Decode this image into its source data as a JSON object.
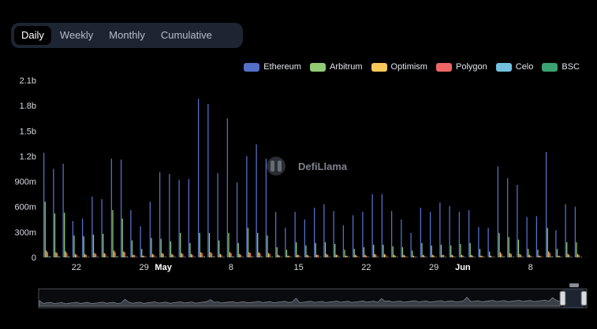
{
  "tabs": [
    {
      "label": "Daily",
      "active": true
    },
    {
      "label": "Weekly",
      "active": false
    },
    {
      "label": "Monthly",
      "active": false
    },
    {
      "label": "Cumulative",
      "active": false
    }
  ],
  "watermark": "DefiLlama",
  "chart_data": {
    "type": "bar",
    "stacked": false,
    "grid": false,
    "legend_position": "top-right",
    "ylim": [
      0,
      2100000000
    ],
    "yticks": [
      0,
      300000000,
      600000000,
      900000000,
      1200000000,
      1500000000,
      1800000000,
      2100000000
    ],
    "ytick_labels": [
      "0",
      "300m",
      "600m",
      "900m",
      "1.2b",
      "1.5b",
      "1.8b",
      "2.1b"
    ],
    "x_start": "2023-04-19",
    "categories": [
      "2023-04-19",
      "2023-04-20",
      "2023-04-21",
      "2023-04-22",
      "2023-04-23",
      "2023-04-24",
      "2023-04-25",
      "2023-04-26",
      "2023-04-27",
      "2023-04-28",
      "2023-04-29",
      "2023-04-30",
      "2023-05-01",
      "2023-05-02",
      "2023-05-03",
      "2023-05-04",
      "2023-05-05",
      "2023-05-06",
      "2023-05-07",
      "2023-05-08",
      "2023-05-09",
      "2023-05-10",
      "2023-05-11",
      "2023-05-12",
      "2023-05-13",
      "2023-05-14",
      "2023-05-15",
      "2023-05-16",
      "2023-05-17",
      "2023-05-18",
      "2023-05-19",
      "2023-05-20",
      "2023-05-21",
      "2023-05-22",
      "2023-05-23",
      "2023-05-24",
      "2023-05-25",
      "2023-05-26",
      "2023-05-27",
      "2023-05-28",
      "2023-05-29",
      "2023-05-30",
      "2023-05-31",
      "2023-06-01",
      "2023-06-02",
      "2023-06-03",
      "2023-06-04",
      "2023-06-05",
      "2023-06-06",
      "2023-06-07",
      "2023-06-08",
      "2023-06-09",
      "2023-06-10",
      "2023-06-11",
      "2023-06-12",
      "2023-06-13"
    ],
    "xtick_labels": [
      {
        "index": 3,
        "label": "22",
        "bold": false
      },
      {
        "index": 10,
        "label": "29",
        "bold": false
      },
      {
        "index": 12,
        "label": "May",
        "bold": true
      },
      {
        "index": 19,
        "label": "8",
        "bold": false
      },
      {
        "index": 26,
        "label": "15",
        "bold": false
      },
      {
        "index": 33,
        "label": "22",
        "bold": false
      },
      {
        "index": 40,
        "label": "29",
        "bold": false
      },
      {
        "index": 43,
        "label": "Jun",
        "bold": true
      },
      {
        "index": 50,
        "label": "8",
        "bold": false
      }
    ],
    "series": [
      {
        "name": "Ethereum",
        "color": "#5470c6",
        "values": [
          1240000000,
          1050000000,
          1110000000,
          430000000,
          460000000,
          720000000,
          690000000,
          1170000000,
          1160000000,
          560000000,
          370000000,
          660000000,
          1010000000,
          990000000,
          920000000,
          930000000,
          1880000000,
          1820000000,
          1000000000,
          1650000000,
          890000000,
          1200000000,
          1340000000,
          1170000000,
          540000000,
          350000000,
          540000000,
          450000000,
          590000000,
          630000000,
          550000000,
          380000000,
          500000000,
          540000000,
          750000000,
          750000000,
          550000000,
          450000000,
          290000000,
          590000000,
          540000000,
          650000000,
          610000000,
          540000000,
          560000000,
          360000000,
          350000000,
          1080000000,
          940000000,
          860000000,
          480000000,
          490000000,
          1250000000,
          320000000,
          630000000,
          600000000
        ]
      },
      {
        "name": "Arbitrum",
        "color": "#91cc75",
        "values": [
          660000000,
          520000000,
          530000000,
          260000000,
          250000000,
          270000000,
          280000000,
          560000000,
          460000000,
          200000000,
          100000000,
          230000000,
          220000000,
          190000000,
          290000000,
          170000000,
          290000000,
          290000000,
          200000000,
          290000000,
          170000000,
          350000000,
          290000000,
          260000000,
          120000000,
          90000000,
          180000000,
          140000000,
          170000000,
          180000000,
          160000000,
          90000000,
          100000000,
          120000000,
          150000000,
          150000000,
          130000000,
          120000000,
          80000000,
          170000000,
          140000000,
          150000000,
          140000000,
          160000000,
          170000000,
          100000000,
          70000000,
          290000000,
          240000000,
          210000000,
          100000000,
          90000000,
          350000000,
          100000000,
          180000000,
          180000000
        ]
      },
      {
        "name": "Optimism",
        "color": "#fac858",
        "values": [
          80000000,
          60000000,
          70000000,
          40000000,
          40000000,
          50000000,
          50000000,
          80000000,
          70000000,
          30000000,
          20000000,
          40000000,
          50000000,
          40000000,
          50000000,
          40000000,
          60000000,
          60000000,
          40000000,
          60000000,
          40000000,
          60000000,
          60000000,
          50000000,
          30000000,
          20000000,
          30000000,
          30000000,
          30000000,
          40000000,
          30000000,
          20000000,
          30000000,
          30000000,
          40000000,
          40000000,
          30000000,
          30000000,
          20000000,
          30000000,
          30000000,
          30000000,
          30000000,
          30000000,
          30000000,
          20000000,
          20000000,
          60000000,
          50000000,
          40000000,
          30000000,
          20000000,
          70000000,
          20000000,
          40000000,
          40000000
        ]
      },
      {
        "name": "Polygon",
        "color": "#ee6666",
        "values": [
          60000000,
          50000000,
          50000000,
          30000000,
          30000000,
          40000000,
          40000000,
          60000000,
          60000000,
          30000000,
          20000000,
          30000000,
          40000000,
          30000000,
          40000000,
          30000000,
          50000000,
          50000000,
          30000000,
          50000000,
          30000000,
          50000000,
          50000000,
          40000000,
          20000000,
          20000000,
          30000000,
          20000000,
          30000000,
          30000000,
          30000000,
          20000000,
          20000000,
          20000000,
          30000000,
          30000000,
          20000000,
          20000000,
          10000000,
          20000000,
          20000000,
          30000000,
          20000000,
          20000000,
          20000000,
          20000000,
          10000000,
          40000000,
          40000000,
          30000000,
          20000000,
          20000000,
          50000000,
          20000000,
          30000000,
          30000000
        ]
      },
      {
        "name": "Celo",
        "color": "#73c0de",
        "values": [
          10000000,
          10000000,
          10000000,
          5000000,
          5000000,
          5000000,
          5000000,
          10000000,
          10000000,
          5000000,
          5000000,
          5000000,
          5000000,
          5000000,
          5000000,
          5000000,
          10000000,
          10000000,
          5000000,
          10000000,
          5000000,
          10000000,
          10000000,
          5000000,
          5000000,
          5000000,
          5000000,
          5000000,
          5000000,
          5000000,
          5000000,
          5000000,
          5000000,
          5000000,
          5000000,
          5000000,
          5000000,
          5000000,
          5000000,
          5000000,
          5000000,
          5000000,
          5000000,
          5000000,
          5000000,
          5000000,
          5000000,
          10000000,
          5000000,
          5000000,
          5000000,
          5000000,
          10000000,
          5000000,
          5000000,
          5000000
        ]
      },
      {
        "name": "BSC",
        "color": "#3ba272",
        "values": [
          15000000,
          12000000,
          12000000,
          8000000,
          8000000,
          9000000,
          9000000,
          15000000,
          14000000,
          8000000,
          6000000,
          8000000,
          10000000,
          9000000,
          10000000,
          9000000,
          14000000,
          14000000,
          9000000,
          13000000,
          9000000,
          12000000,
          12000000,
          11000000,
          7000000,
          6000000,
          7000000,
          7000000,
          7000000,
          8000000,
          7000000,
          6000000,
          6000000,
          7000000,
          8000000,
          8000000,
          7000000,
          7000000,
          5000000,
          7000000,
          7000000,
          8000000,
          7000000,
          7000000,
          7000000,
          6000000,
          5000000,
          12000000,
          10000000,
          9000000,
          7000000,
          6000000,
          13000000,
          6000000,
          8000000,
          8000000
        ]
      }
    ]
  }
}
